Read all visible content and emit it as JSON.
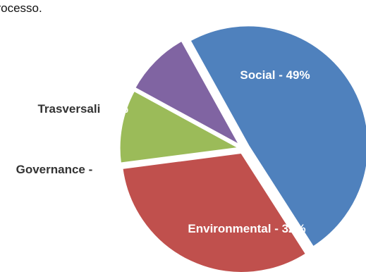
{
  "intro_text": "processo.",
  "chart_data": {
    "type": "pie",
    "slices": [
      {
        "name": "Social",
        "value": 49,
        "display": "Social -  49%",
        "color": "#4f81bd",
        "label_color": "#ffffff"
      },
      {
        "name": "Environmental",
        "value": 32,
        "display": "Environmental -  32%",
        "color": "#c0504d",
        "label_color": "#ffffff"
      },
      {
        "name": "Governance",
        "value": 10,
        "display_prefix": "Governance - ",
        "display_value": "10%",
        "color": "#9bbb59",
        "prefix_color": "#333333",
        "value_color": "#ffffff"
      },
      {
        "name": "Trasversali",
        "value": 9,
        "display_prefix": "Trasversali ",
        "display_value": "- 9%",
        "color": "#8064a2",
        "prefix_color": "#333333",
        "value_color": "#ffffff"
      }
    ]
  }
}
